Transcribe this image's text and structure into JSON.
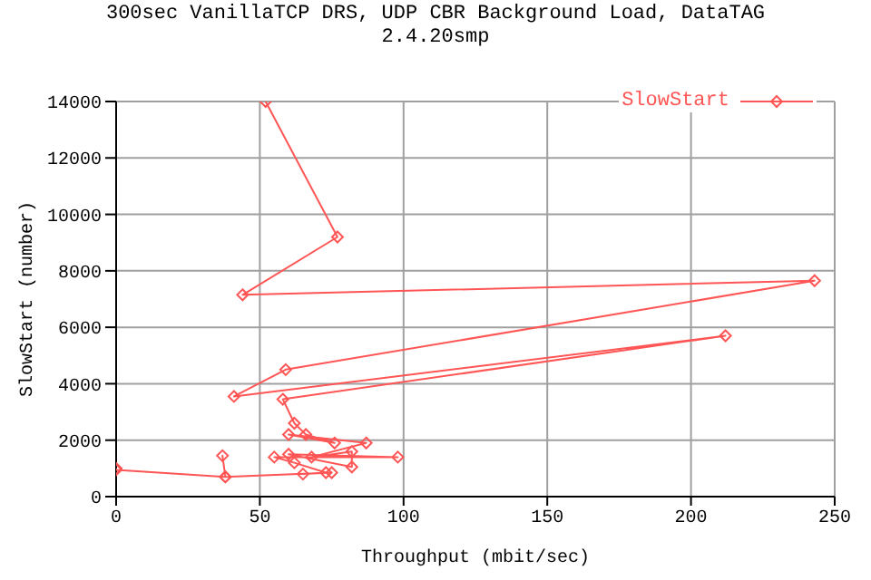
{
  "chart_data": {
    "type": "line",
    "title": "300sec VanillaTCP DRS, UDP CBR Background Load, DataTAG",
    "subtitle": "2.4.20smp",
    "xlabel": "Throughput (mbit/sec)",
    "ylabel": "SlowStart (number)",
    "xlim": [
      0,
      250
    ],
    "xticks": [
      0,
      50,
      100,
      150,
      200,
      250
    ],
    "ylim": [
      0,
      14000
    ],
    "yticks": [
      0,
      2000,
      4000,
      6000,
      8000,
      10000,
      12000,
      14000
    ],
    "grid": true,
    "legend": "top right",
    "marker": "diamond",
    "line_style": "solid",
    "series": [
      {
        "name": "SlowStart",
        "color": "#ff5555",
        "x": [
          0,
          0,
          38,
          37,
          38,
          75,
          65,
          73,
          62,
          55,
          98,
          60,
          82,
          82,
          68,
          87,
          60,
          76,
          66,
          62,
          58,
          212,
          41,
          59,
          243,
          44,
          77,
          52
        ],
        "values": [
          1000,
          950,
          700,
          1450,
          700,
          850,
          800,
          850,
          1200,
          1400,
          1400,
          1500,
          1050,
          1600,
          1400,
          1900,
          2200,
          1900,
          2200,
          2600,
          3450,
          5700,
          3550,
          4500,
          7650,
          7150,
          9200,
          14000
        ]
      }
    ]
  }
}
